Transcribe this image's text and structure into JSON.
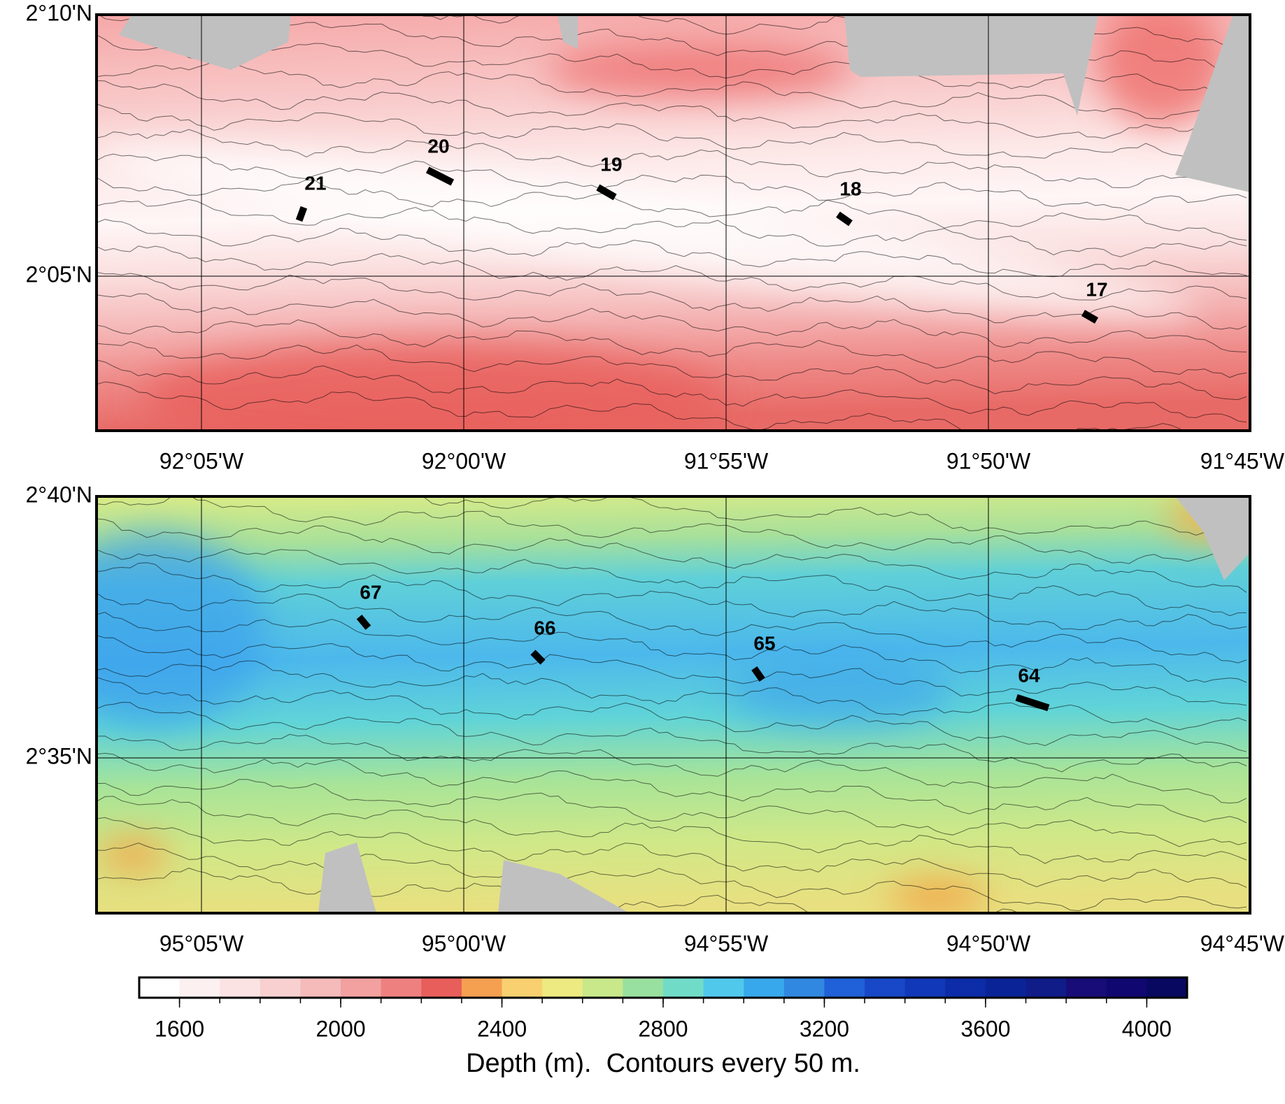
{
  "maps": [
    {
      "lat_labels": [
        "2°10'N",
        "2°05'N"
      ],
      "lon_labels": [
        "92°05'W",
        "92°00'W",
        "91°55'W",
        "91°50'W",
        "91°45'W"
      ],
      "stations": [
        "21",
        "20",
        "19",
        "18",
        "17"
      ]
    },
    {
      "lat_labels": [
        "2°40'N",
        "2°35'N"
      ],
      "lon_labels": [
        "95°05'W",
        "95°00'W",
        "94°55'W",
        "94°50'W",
        "94°45'W"
      ],
      "stations": [
        "67",
        "66",
        "65",
        "64"
      ]
    }
  ],
  "colorbar": {
    "range": [
      1500,
      4100
    ],
    "ticks": [
      1600,
      2000,
      2400,
      2800,
      3200,
      3600,
      4000
    ],
    "colors": [
      "#ffffff",
      "#fdf0f0",
      "#fbe3e3",
      "#f8d0d0",
      "#f5baba",
      "#f2a0a0",
      "#ee8080",
      "#e85e5a",
      "#f5a050",
      "#f8d070",
      "#ecea80",
      "#c8e88a",
      "#98e0a0",
      "#70dcc8",
      "#50c8ec",
      "#38a8ec",
      "#3088e0",
      "#2060d8",
      "#1848c8",
      "#1038b8",
      "#0c2ca8",
      "#0a2498",
      "#101c88",
      "#180c78",
      "#100870",
      "#080860"
    ],
    "label": "Depth (m).  Contours every 50 m."
  }
}
